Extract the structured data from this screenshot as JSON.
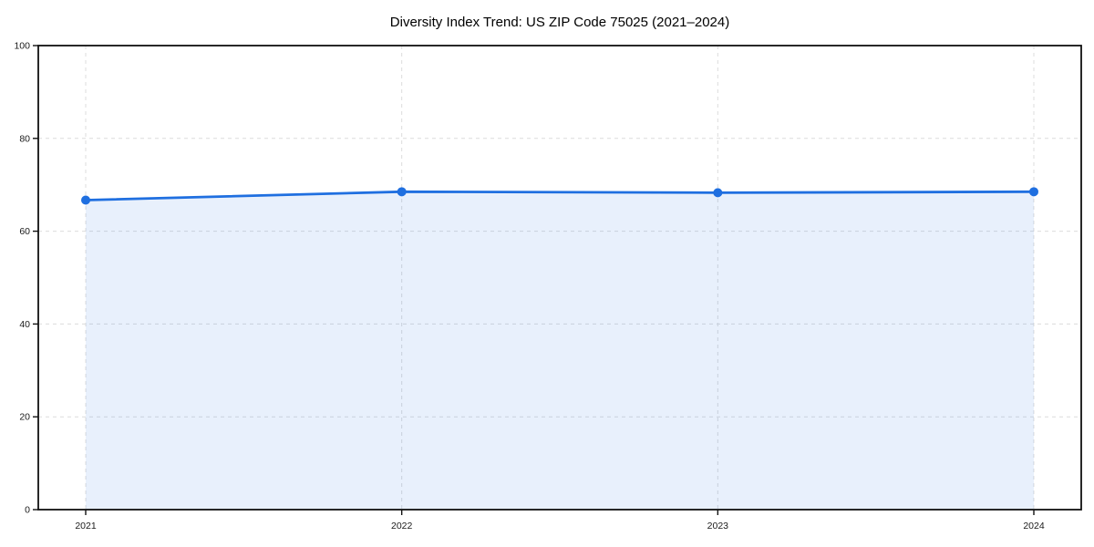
{
  "chart": {
    "title": "Diversity Index Trend: US ZIP Code 75025 (2021–2024)"
  },
  "chart_data": {
    "type": "area",
    "title": "Diversity Index Trend: US ZIP Code 75025 (2021–2024)",
    "x": [
      2021,
      2022,
      2023,
      2024
    ],
    "xtick_labels": [
      "2021",
      "2022",
      "2023",
      "2024"
    ],
    "series": [
      {
        "name": "Diversity Index",
        "values": [
          66.7,
          68.5,
          68.3,
          68.5
        ]
      }
    ],
    "xlabel": "",
    "ylabel": "",
    "ylim": [
      0,
      100
    ],
    "yticks": [
      0,
      20,
      40,
      60,
      80,
      100
    ],
    "grid": "dashed-both-axes",
    "legend": "none",
    "marker": "circle",
    "fill_to_zero": true,
    "colors": {
      "line": "#1f6fe0",
      "marker": "#1f6fe0",
      "fill": "rgba(31, 111, 224, 0.10)",
      "gridline": "#dcdcdc",
      "spine": "#111111",
      "tick_label": "#1a1a1a",
      "title": "#000000",
      "background": "#ffffff"
    }
  }
}
